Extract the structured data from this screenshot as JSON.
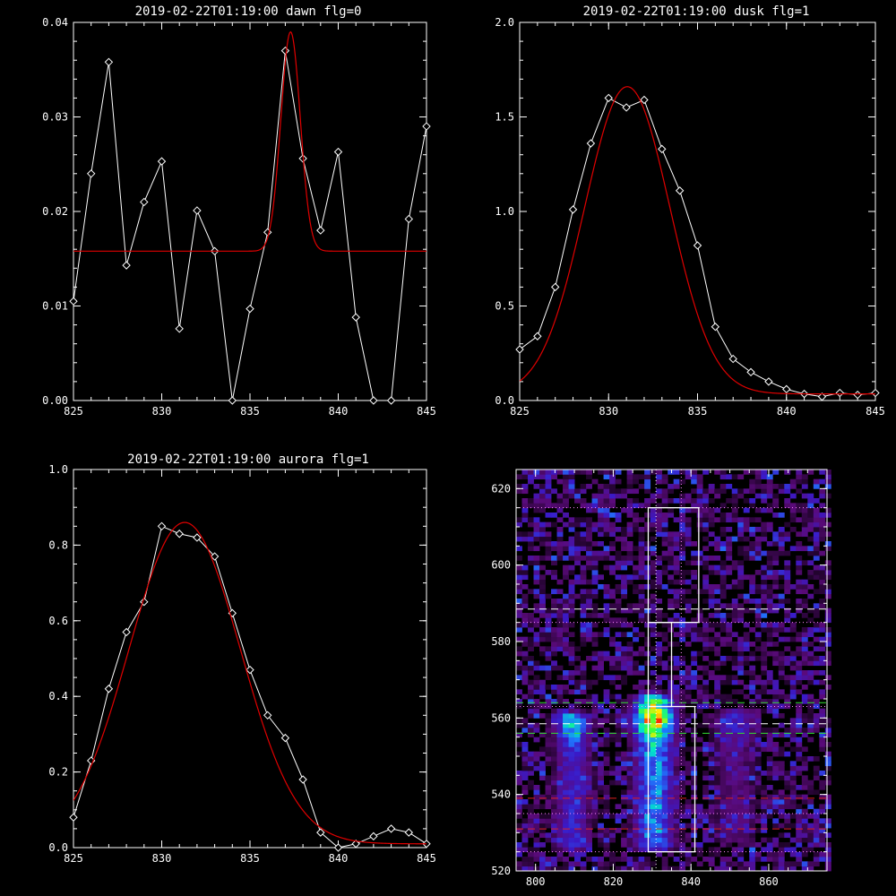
{
  "chart_data": [
    {
      "type": "line",
      "title": "2019-02-22T01:19:00 dawn flg=0",
      "xlim": [
        825,
        845
      ],
      "ylim": [
        0,
        0.04
      ],
      "xticks": [
        "825",
        "830",
        "835",
        "840",
        "845"
      ],
      "yticks": [
        "0.00",
        "0.01",
        "0.02",
        "0.03",
        "0.04"
      ],
      "series": [
        {
          "x": [
            825,
            826,
            827,
            828,
            829,
            830,
            831,
            832,
            833,
            834,
            835,
            836,
            837,
            838,
            839,
            840,
            841,
            842,
            843,
            844,
            845
          ],
          "values": [
            0.0105,
            0.024,
            0.0358,
            0.0143,
            0.021,
            0.0253,
            0.0076,
            0.0201,
            0.0158,
            0.0,
            0.0097,
            0.0178,
            0.037,
            0.0256,
            0.018,
            0.0263,
            0.0088,
            0.0,
            0.0,
            0.0192,
            0.029
          ],
          "color": "#ffffff"
        },
        {
          "fit": "gaussian",
          "color": "#e00000",
          "baseline": 0.0158,
          "amplitude": 0.0232,
          "center": 837.3,
          "sigma": 0.55
        }
      ]
    },
    {
      "type": "line",
      "title": "2019-02-22T01:19:00 dusk flg=1",
      "xlim": [
        825,
        845
      ],
      "ylim": [
        0,
        2.0
      ],
      "xticks": [
        "825",
        "830",
        "835",
        "840",
        "845"
      ],
      "yticks": [
        "0.0",
        "0.5",
        "1.0",
        "1.5",
        "2.0"
      ],
      "series": [
        {
          "x": [
            825,
            826,
            827,
            828,
            829,
            830,
            831,
            832,
            833,
            834,
            835,
            836,
            837,
            838,
            839,
            840,
            841,
            842,
            843,
            844,
            845
          ],
          "values": [
            0.27,
            0.34,
            0.6,
            1.01,
            1.36,
            1.6,
            1.55,
            1.59,
            1.33,
            1.11,
            0.82,
            0.39,
            0.22,
            0.15,
            0.1,
            0.06,
            0.035,
            0.02,
            0.04,
            0.03,
            0.04
          ],
          "color": "#ffffff"
        },
        {
          "fit": "gaussian",
          "color": "#e00000",
          "baseline": 0.035,
          "amplitude": 1.625,
          "center": 831.05,
          "sigma": 2.4
        }
      ]
    },
    {
      "type": "line",
      "title": "2019-02-22T01:19:00 aurora flg=1",
      "xlim": [
        825,
        845
      ],
      "ylim": [
        0,
        1.0
      ],
      "xticks": [
        "825",
        "830",
        "835",
        "840",
        "845"
      ],
      "yticks": [
        "0.0",
        "0.2",
        "0.4",
        "0.6",
        "0.8",
        "1.0"
      ],
      "series": [
        {
          "x": [
            825,
            826,
            827,
            828,
            829,
            830,
            831,
            832,
            833,
            834,
            835,
            836,
            837,
            838,
            839,
            840,
            841,
            842,
            843,
            844,
            845
          ],
          "values": [
            0.08,
            0.23,
            0.42,
            0.57,
            0.65,
            0.85,
            0.83,
            0.82,
            0.77,
            0.62,
            0.47,
            0.35,
            0.29,
            0.18,
            0.04,
            0.0,
            0.01,
            0.03,
            0.05,
            0.04,
            0.01
          ],
          "color": "#ffffff"
        },
        {
          "fit": "gaussian",
          "color": "#e00000",
          "baseline": 0.01,
          "amplitude": 0.85,
          "center": 831.3,
          "sigma": 3.15
        }
      ]
    },
    {
      "type": "heatmap",
      "xlim": [
        795,
        875
      ],
      "ylim": [
        520,
        625
      ],
      "xticks": [
        "800",
        "820",
        "840",
        "860"
      ],
      "yticks": [
        "520",
        "540",
        "560",
        "580",
        "600",
        "620"
      ],
      "colormap": [
        "#000000",
        "#5a0a7a",
        "#3a1ac8",
        "#1f78ff",
        "#00e6c8",
        "#3cff3c",
        "#ffee00",
        "#ff2a00"
      ],
      "hot_bands": [
        {
          "x_center": 830.5,
          "x_halfwidth": 3.5,
          "y_from": 525,
          "y_to": 567,
          "peak": 1.0,
          "peak_y": 560
        },
        {
          "x_center": 809.5,
          "x_halfwidth": 3.2,
          "y_from": 525,
          "y_to": 562,
          "peak": 0.62,
          "peak_y": 559
        },
        {
          "x_center": 851.5,
          "x_halfwidth": 4.0,
          "y_from": 527,
          "y_to": 563,
          "peak": 0.32,
          "peak_y": 559
        }
      ],
      "boxes": [
        {
          "x": [
            829,
            842
          ],
          "y": [
            585,
            615
          ],
          "color": "#ffffff"
        },
        {
          "x": [
            829,
            835
          ],
          "y": [
            563,
            585
          ],
          "color": "#ffffff"
        },
        {
          "x": [
            829,
            841
          ],
          "y": [
            525,
            563
          ],
          "color": "#ffffff"
        }
      ],
      "hlines": [
        {
          "y": 588.5,
          "color": "#ffffff",
          "style": "dashed"
        },
        {
          "y": 558.5,
          "color": "#ffffff",
          "style": "dashed"
        },
        {
          "y": 564,
          "color": "#33dd33",
          "style": "dashed"
        },
        {
          "y": 556,
          "color": "#33dd33",
          "style": "dashed"
        },
        {
          "y": 539,
          "color": "#e02020",
          "style": "dashed"
        },
        {
          "y": 531,
          "color": "#e02020",
          "style": "dashed"
        },
        {
          "y": 615,
          "color": "#ff88ff",
          "style": "dotted"
        },
        {
          "y": 585,
          "color": "#ff88ff",
          "style": "dotted"
        },
        {
          "y": 563,
          "color": "#ff88ff",
          "style": "dotted"
        },
        {
          "y": 535,
          "color": "#ff88ff",
          "style": "dotted"
        },
        {
          "y": 525,
          "color": "#ff88ff",
          "style": "dotted"
        }
      ],
      "vlines": [
        {
          "x": 831,
          "color": "#ffffff",
          "style": "dotted"
        },
        {
          "x": 837.5,
          "color": "#ff88ff",
          "style": "dotted"
        }
      ]
    }
  ]
}
